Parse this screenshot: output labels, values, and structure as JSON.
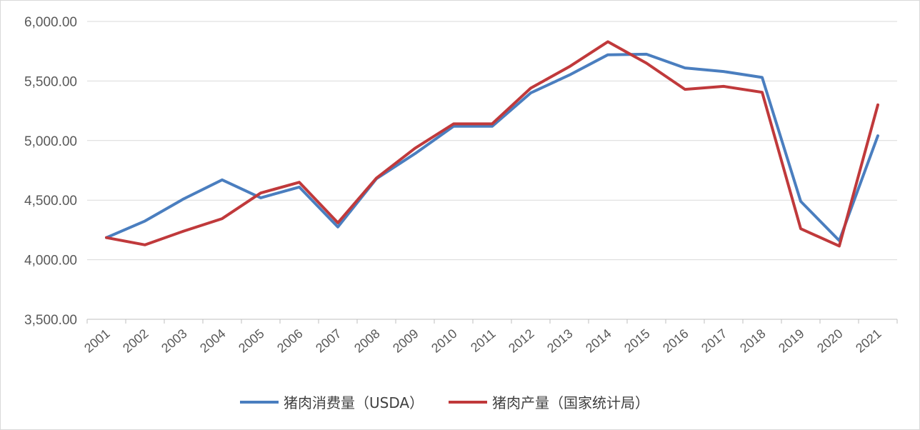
{
  "chart_data": {
    "type": "line",
    "title": "",
    "xlabel": "",
    "ylabel": "",
    "x": [
      "2001",
      "2002",
      "2003",
      "2004",
      "2005",
      "2006",
      "2007",
      "2008",
      "2009",
      "2010",
      "2011",
      "2012",
      "2013",
      "2014",
      "2015",
      "2016",
      "2017",
      "2018",
      "2019",
      "2020",
      "2021"
    ],
    "ylim": [
      3500,
      6000
    ],
    "yticks": [
      "3,500.00",
      "4,000.00",
      "4,500.00",
      "5,000.00",
      "5,500.00",
      "6,000.00"
    ],
    "grid": true,
    "legend_position": "bottom",
    "series": [
      {
        "name": "猪肉消费量（USDA）",
        "color": "#4a7ebf",
        "values": [
          4185,
          4325,
          4510,
          4670,
          4520,
          4610,
          4275,
          4680,
          4890,
          5120,
          5120,
          5400,
          5550,
          5720,
          5725,
          5610,
          5580,
          5530,
          4490,
          4160,
          5040
        ]
      },
      {
        "name": "猪肉产量（国家统计局）",
        "color": "#c0393b",
        "values": [
          4185,
          4125,
          4240,
          4345,
          4560,
          4650,
          4310,
          4685,
          4935,
          5140,
          5140,
          5440,
          5620,
          5830,
          5650,
          5430,
          5455,
          5405,
          4260,
          4115,
          5300
        ]
      }
    ]
  }
}
